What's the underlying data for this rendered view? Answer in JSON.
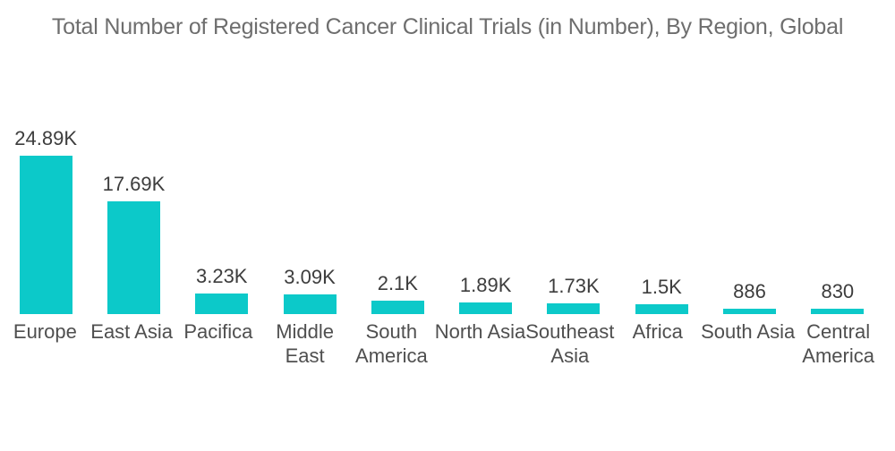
{
  "chart_data": {
    "type": "bar",
    "title": "Total Number of Registered Cancer Clinical Trials (in Number), By Region, Global",
    "categories": [
      "Europe",
      "East Asia",
      "Pacifica",
      "Middle East",
      "South America",
      "North Asia",
      "Southeast Asia",
      "Africa",
      "South Asia",
      "Central America"
    ],
    "category_lines": [
      [
        "Europe"
      ],
      [
        "East Asia"
      ],
      [
        "Pacifica"
      ],
      [
        "Middle",
        "East"
      ],
      [
        "South",
        "America"
      ],
      [
        "North Asia"
      ],
      [
        "Southeast",
        "Asia"
      ],
      [
        "Africa"
      ],
      [
        "South Asia"
      ],
      [
        "Central",
        "America"
      ]
    ],
    "values": [
      24890,
      17690,
      3230,
      3090,
      2100,
      1890,
      1730,
      1500,
      886,
      830
    ],
    "value_labels": [
      "24.89K",
      "17.69K",
      "3.23K",
      "3.09K",
      "2.1K",
      "1.89K",
      "1.73K",
      "1.5K",
      "886",
      "830"
    ],
    "xlabel": "",
    "ylabel": "",
    "ylim": [
      0,
      24890
    ],
    "grid": false,
    "legend": false,
    "bar_color": "#0cc9c9",
    "background_color": "#ffffff",
    "title_color": "#6e6e6e",
    "value_label_color": "#3d3d3d",
    "category_label_color": "#4f4f4f"
  }
}
